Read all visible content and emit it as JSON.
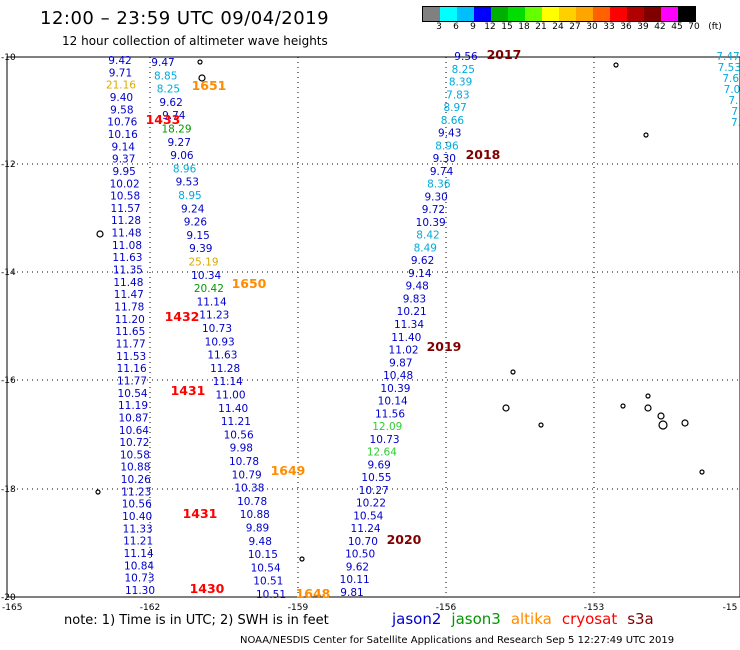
{
  "header": {
    "title": "12:00 – 23:59 UTC 09/04/2019",
    "subtitle": "12 hour collection of altimeter wave heights"
  },
  "scale": {
    "labels": [
      "3",
      "6",
      "9",
      "12",
      "15",
      "18",
      "21",
      "24",
      "27",
      "30",
      "33",
      "36",
      "39",
      "42",
      "45",
      "70",
      "(ft)"
    ],
    "colors": [
      "#808080",
      "#00ffff",
      "#00bfff",
      "#0000ff",
      "#00b000",
      "#00dd00",
      "#66ff00",
      "#ffff00",
      "#ffd000",
      "#ffa500",
      "#ff6000",
      "#ff0000",
      "#b00000",
      "#800000",
      "#ff00ff",
      "#000000"
    ]
  },
  "map": {
    "lon_ticks": [
      "-165",
      "-162",
      "-159",
      "-156",
      "-153",
      "-15"
    ],
    "lat_ticks": [
      "-10",
      "-12",
      "-14",
      "-16",
      "-18",
      "-20"
    ],
    "colors": {
      "jason2": "#0000cc",
      "jason3": "#009900",
      "altika": "#ff8c00",
      "cryosat": "#ff0000",
      "s3a": "#800000",
      "cyan": "#00aadd",
      "lime": "#33cc33",
      "gold": "#ddaa00"
    },
    "time_labels": [
      {
        "text": "2017",
        "c": "s3a"
      },
      {
        "text": "1651",
        "c": "altika"
      },
      {
        "text": "1433",
        "c": "cryosat"
      },
      {
        "text": "2018",
        "c": "s3a"
      },
      {
        "text": "1650",
        "c": "altika"
      },
      {
        "text": "1432",
        "c": "cryosat"
      },
      {
        "text": "2019",
        "c": "s3a"
      },
      {
        "text": "1431",
        "c": "cryosat"
      },
      {
        "text": "1649",
        "c": "altika"
      },
      {
        "text": "1431",
        "c": "cryosat"
      },
      {
        "text": "2020",
        "c": "s3a"
      },
      {
        "text": "1430",
        "c": "cryosat"
      },
      {
        "text": "1648",
        "c": "altika"
      }
    ],
    "track_a": [
      {
        "v": "9.42",
        "c": "jason2"
      },
      {
        "v": "9.71",
        "c": "jason2"
      },
      {
        "v": "21.16",
        "c": "gold"
      },
      {
        "v": "9.40",
        "c": "jason2"
      },
      {
        "v": "9.58",
        "c": "jason2"
      },
      {
        "v": "10.76",
        "c": "jason2"
      },
      {
        "v": "10.16",
        "c": "jason2"
      },
      {
        "v": "9.14",
        "c": "jason2"
      },
      {
        "v": "9.37",
        "c": "jason2"
      },
      {
        "v": "9.95",
        "c": "jason2"
      },
      {
        "v": "10.02",
        "c": "jason2"
      },
      {
        "v": "10.58",
        "c": "jason2"
      },
      {
        "v": "11.57",
        "c": "jason2"
      },
      {
        "v": "11.28",
        "c": "jason2"
      },
      {
        "v": "11.48",
        "c": "jason2"
      },
      {
        "v": "11.08",
        "c": "jason2"
      },
      {
        "v": "11.63",
        "c": "jason2"
      },
      {
        "v": "11.35",
        "c": "jason2"
      },
      {
        "v": "11.48",
        "c": "jason2"
      },
      {
        "v": "11.47",
        "c": "jason2"
      },
      {
        "v": "11.78",
        "c": "jason2"
      },
      {
        "v": "11.20",
        "c": "jason2"
      },
      {
        "v": "11.65",
        "c": "jason2"
      },
      {
        "v": "11.77",
        "c": "jason2"
      },
      {
        "v": "11.53",
        "c": "jason2"
      },
      {
        "v": "11.16",
        "c": "jason2"
      },
      {
        "v": "11.77",
        "c": "jason2"
      },
      {
        "v": "10.54",
        "c": "jason2"
      },
      {
        "v": "11.19",
        "c": "jason2"
      },
      {
        "v": "10.87",
        "c": "jason2"
      },
      {
        "v": "10.64",
        "c": "jason2"
      },
      {
        "v": "10.72",
        "c": "jason2"
      },
      {
        "v": "10.58",
        "c": "jason2"
      },
      {
        "v": "10.88",
        "c": "jason2"
      },
      {
        "v": "10.26",
        "c": "jason2"
      },
      {
        "v": "11.23",
        "c": "jason2"
      },
      {
        "v": "10.56",
        "c": "jason2"
      },
      {
        "v": "10.40",
        "c": "jason2"
      },
      {
        "v": "11.33",
        "c": "jason2"
      },
      {
        "v": "11.21",
        "c": "jason2"
      },
      {
        "v": "11.14",
        "c": "jason2"
      },
      {
        "v": "10.84",
        "c": "jason2"
      },
      {
        "v": "10.73",
        "c": "jason2"
      },
      {
        "v": "11.30",
        "c": "jason2"
      }
    ],
    "track_b": [
      {
        "v": "9.47",
        "c": "jason2"
      },
      {
        "v": "8.85",
        "c": "cyan"
      },
      {
        "v": "8.25",
        "c": "cyan"
      },
      {
        "v": "9.62",
        "c": "jason2"
      },
      {
        "v": "9.74",
        "c": "jason2"
      },
      {
        "v": "18.29",
        "c": "jason3"
      },
      {
        "v": "9.27",
        "c": "jason2"
      },
      {
        "v": "9.06",
        "c": "jason2"
      },
      {
        "v": "8.96",
        "c": "cyan"
      },
      {
        "v": "9.53",
        "c": "jason2"
      },
      {
        "v": "8.95",
        "c": "cyan"
      },
      {
        "v": "9.24",
        "c": "jason2"
      },
      {
        "v": "9.26",
        "c": "jason2"
      },
      {
        "v": "9.15",
        "c": "jason2"
      },
      {
        "v": "9.39",
        "c": "jason2"
      },
      {
        "v": "25.19",
        "c": "gold"
      },
      {
        "v": "10.34",
        "c": "jason2"
      },
      {
        "v": "20.42",
        "c": "jason3"
      },
      {
        "v": "11.14",
        "c": "jason2"
      },
      {
        "v": "11.23",
        "c": "jason2"
      },
      {
        "v": "10.73",
        "c": "jason2"
      },
      {
        "v": "10.93",
        "c": "jason2"
      },
      {
        "v": "11.63",
        "c": "jason2"
      },
      {
        "v": "11.28",
        "c": "jason2"
      },
      {
        "v": "11.14",
        "c": "jason2"
      },
      {
        "v": "11.00",
        "c": "jason2"
      },
      {
        "v": "11.40",
        "c": "jason2"
      },
      {
        "v": "11.21",
        "c": "jason2"
      },
      {
        "v": "10.56",
        "c": "jason2"
      },
      {
        "v": "9.98",
        "c": "jason2"
      },
      {
        "v": "10.78",
        "c": "jason2"
      },
      {
        "v": "10.79",
        "c": "jason2"
      },
      {
        "v": "10.38",
        "c": "jason2"
      },
      {
        "v": "10.78",
        "c": "jason2"
      },
      {
        "v": "10.88",
        "c": "jason2"
      },
      {
        "v": "9.89",
        "c": "jason2"
      },
      {
        "v": "9.48",
        "c": "jason2"
      },
      {
        "v": "10.15",
        "c": "jason2"
      },
      {
        "v": "10.54",
        "c": "jason2"
      },
      {
        "v": "10.51",
        "c": "jason2"
      },
      {
        "v": "10.51",
        "c": "jason2"
      }
    ],
    "track_c": [
      {
        "v": "9.56",
        "c": "jason2"
      },
      {
        "v": "8.25",
        "c": "cyan"
      },
      {
        "v": "8.39",
        "c": "cyan"
      },
      {
        "v": "7.83",
        "c": "cyan"
      },
      {
        "v": "8.97",
        "c": "cyan"
      },
      {
        "v": "8.66",
        "c": "cyan"
      },
      {
        "v": "9.43",
        "c": "jason2"
      },
      {
        "v": "8.96",
        "c": "cyan"
      },
      {
        "v": "9.30",
        "c": "jason2"
      },
      {
        "v": "9.74",
        "c": "jason2"
      },
      {
        "v": "8.36",
        "c": "cyan"
      },
      {
        "v": "9.30",
        "c": "jason2"
      },
      {
        "v": "9.72",
        "c": "jason2"
      },
      {
        "v": "10.39",
        "c": "jason2"
      },
      {
        "v": "8.42",
        "c": "cyan"
      },
      {
        "v": "8.49",
        "c": "cyan"
      },
      {
        "v": "9.62",
        "c": "jason2"
      },
      {
        "v": "9.14",
        "c": "jason2"
      },
      {
        "v": "9.48",
        "c": "jason2"
      },
      {
        "v": "9.83",
        "c": "jason2"
      },
      {
        "v": "10.21",
        "c": "jason2"
      },
      {
        "v": "11.34",
        "c": "jason2"
      },
      {
        "v": "11.40",
        "c": "jason2"
      },
      {
        "v": "11.02",
        "c": "jason2"
      },
      {
        "v": "9.87",
        "c": "jason2"
      },
      {
        "v": "10.48",
        "c": "jason2"
      },
      {
        "v": "10.39",
        "c": "jason2"
      },
      {
        "v": "10.14",
        "c": "jason2"
      },
      {
        "v": "11.56",
        "c": "jason2"
      },
      {
        "v": "12.09",
        "c": "lime"
      },
      {
        "v": "10.73",
        "c": "jason2"
      },
      {
        "v": "12.64",
        "c": "lime"
      },
      {
        "v": "9.69",
        "c": "jason2"
      },
      {
        "v": "10.55",
        "c": "jason2"
      },
      {
        "v": "10.27",
        "c": "jason2"
      },
      {
        "v": "10.22",
        "c": "jason2"
      },
      {
        "v": "10.54",
        "c": "jason2"
      },
      {
        "v": "11.24",
        "c": "jason2"
      },
      {
        "v": "10.70",
        "c": "jason2"
      },
      {
        "v": "10.50",
        "c": "jason2"
      },
      {
        "v": "9.62",
        "c": "jason2"
      },
      {
        "v": "10.11",
        "c": "jason2"
      },
      {
        "v": "9.81",
        "c": "jason2"
      }
    ],
    "track_d": [
      {
        "v": "7.47",
        "c": "cyan"
      },
      {
        "v": "7.53",
        "c": "cyan"
      },
      {
        "v": "7.6",
        "c": "cyan"
      },
      {
        "v": "7.0",
        "c": "cyan"
      },
      {
        "v": "7.",
        "c": "cyan"
      },
      {
        "v": "7",
        "c": "cyan"
      },
      {
        "v": "7.",
        "c": "cyan"
      }
    ]
  },
  "note": "note:  1) Time is in UTC;  2) SWH is in feet",
  "satellites": [
    {
      "name": "jason2",
      "color": "#0000cc"
    },
    {
      "name": "jason3",
      "color": "#009900"
    },
    {
      "name": "altika",
      "color": "#ff8c00"
    },
    {
      "name": "cryosat",
      "color": "#ff0000"
    },
    {
      "name": "s3a",
      "color": "#800000"
    }
  ],
  "footer": "NOAA/NESDIS Center for Satellite Applications and Research    Sep  5 12:27:49 UTC 2019"
}
